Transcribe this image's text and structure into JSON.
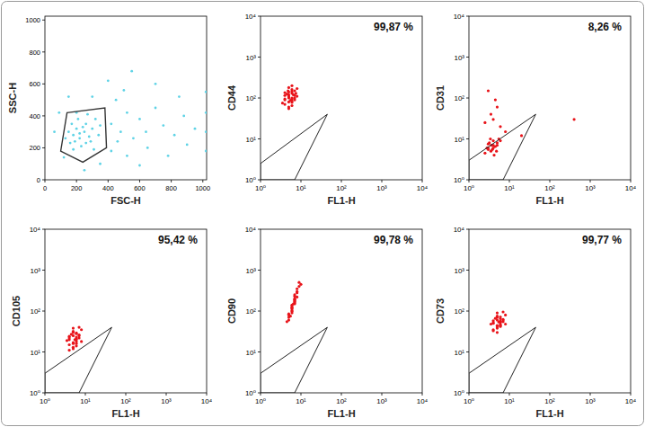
{
  "chart_data": [
    {
      "type": "scatter",
      "x_label": "FSC-H",
      "y_label": "SSC-H",
      "color": "#5fd3e6",
      "xlim": [
        0,
        1024
      ],
      "ylim": [
        0,
        1024
      ],
      "xticks": [
        0,
        200,
        400,
        600,
        800,
        1000
      ],
      "yticks": [
        0,
        200,
        400,
        600,
        800,
        1000
      ],
      "x": [
        150,
        180,
        200,
        220,
        250,
        170,
        210,
        260,
        300,
        280,
        190,
        230,
        160,
        320,
        340,
        270,
        200,
        130,
        240,
        290,
        310,
        350,
        180,
        220,
        260,
        420,
        480,
        520,
        560,
        600,
        450,
        500,
        640,
        700,
        750,
        820,
        880,
        950,
        400,
        550,
        700,
        300,
        150,
        90,
        60,
        420,
        520,
        650,
        780,
        900,
        1020,
        1020,
        1020,
        1020,
        350,
        250,
        600,
        850,
        120,
        460
      ],
      "y": [
        300,
        280,
        320,
        260,
        300,
        350,
        380,
        350,
        320,
        270,
        240,
        210,
        230,
        380,
        280,
        410,
        420,
        260,
        330,
        240,
        190,
        340,
        190,
        290,
        230,
        350,
        300,
        420,
        260,
        380,
        500,
        560,
        300,
        450,
        340,
        280,
        400,
        320,
        620,
        680,
        600,
        520,
        520,
        420,
        300,
        180,
        150,
        200,
        150,
        220,
        300,
        180,
        420,
        550,
        100,
        60,
        90,
        520,
        140,
        240
      ],
      "gate": {
        "x": [
          140,
          380,
          390,
          240,
          100
        ],
        "y": [
          420,
          450,
          200,
          110,
          180
        ]
      }
    },
    {
      "type": "scatter",
      "x_label": "FL1-H",
      "y_label": "CD44",
      "color": "#e8141a",
      "log": true,
      "annotation": "99,87 %",
      "xlim": [
        1,
        10000
      ],
      "ylim": [
        1,
        10000
      ],
      "xticks": [
        {
          "value": 1,
          "label": "10⁰"
        },
        {
          "value": 10,
          "label": "10¹"
        },
        {
          "value": 100,
          "label": "10²"
        },
        {
          "value": 1000,
          "label": "10³"
        },
        {
          "value": 10000,
          "label": "10⁴"
        }
      ],
      "yticks": [
        {
          "value": 1,
          "label": "10⁰"
        },
        {
          "value": 10,
          "label": "10¹"
        },
        {
          "value": 100,
          "label": "10²"
        },
        {
          "value": 1000,
          "label": "10³"
        },
        {
          "value": 10000,
          "label": "10⁴"
        }
      ],
      "x": [
        4,
        5,
        6,
        5,
        7,
        4,
        6,
        5,
        8,
        6,
        5,
        4,
        7,
        6,
        5,
        3.5,
        6,
        7,
        5,
        4.5,
        6,
        8,
        5,
        6,
        4,
        7,
        5,
        6,
        5.5,
        4,
        6.5,
        7.5,
        5,
        6,
        4.8
      ],
      "y": [
        90,
        110,
        130,
        80,
        150,
        70,
        100,
        120,
        170,
        200,
        60,
        95,
        115,
        85,
        140,
        75,
        160,
        90,
        105,
        125,
        65,
        110,
        180,
        95,
        135,
        100,
        55,
        145,
        88,
        115,
        120,
        130,
        100,
        78,
        150
      ],
      "gate": {
        "x": [
          1,
          1,
          45,
          7
        ],
        "y": [
          1,
          2.5,
          40,
          1
        ]
      }
    },
    {
      "type": "scatter",
      "x_label": "FL1-H",
      "y_label": "CD31",
      "color": "#e8141a",
      "log": true,
      "annotation": "8,26 %",
      "xlim": [
        1,
        10000
      ],
      "ylim": [
        1,
        10000
      ],
      "xticks": [
        {
          "value": 1,
          "label": "10⁰"
        },
        {
          "value": 10,
          "label": "10¹"
        },
        {
          "value": 100,
          "label": "10²"
        },
        {
          "value": 1000,
          "label": "10³"
        },
        {
          "value": 10000,
          "label": "10⁴"
        }
      ],
      "yticks": [
        {
          "value": 1,
          "label": "10⁰"
        },
        {
          "value": 10,
          "label": "10¹"
        },
        {
          "value": 100,
          "label": "10²"
        },
        {
          "value": 1000,
          "label": "10³"
        },
        {
          "value": 10000,
          "label": "10⁴"
        }
      ],
      "x": [
        3,
        4,
        3.5,
        5,
        2.5,
        4,
        3,
        4.5,
        3.8,
        5.5,
        3.2,
        4.2,
        2.8,
        6,
        3.6,
        4.8,
        3.4,
        4,
        5,
        3,
        4,
        5,
        3,
        6,
        8,
        3.5,
        20,
        400,
        2.5,
        4.5
      ],
      "y": [
        6,
        7,
        5,
        8,
        4.5,
        9,
        7.5,
        6.5,
        5.5,
        10,
        8,
        4,
        6,
        9,
        7,
        5,
        10,
        6,
        7,
        5.5,
        30,
        60,
        150,
        20,
        15,
        40,
        12,
        30,
        25,
        90
      ],
      "gate": {
        "x": [
          1,
          1,
          45,
          7
        ],
        "y": [
          1,
          3,
          40,
          1
        ]
      }
    },
    {
      "type": "scatter",
      "x_label": "FL1-H",
      "y_label": "CD105",
      "color": "#e8141a",
      "log": true,
      "annotation": "95,42 %",
      "xlim": [
        1,
        10000
      ],
      "ylim": [
        1,
        10000
      ],
      "xticks": [
        {
          "value": 1,
          "label": "10⁰"
        },
        {
          "value": 10,
          "label": "10¹"
        },
        {
          "value": 100,
          "label": "10²"
        },
        {
          "value": 1000,
          "label": "10³"
        },
        {
          "value": 10000,
          "label": "10⁴"
        }
      ],
      "yticks": [
        {
          "value": 1,
          "label": "10⁰"
        },
        {
          "value": 10,
          "label": "10¹"
        },
        {
          "value": 100,
          "label": "10²"
        },
        {
          "value": 1000,
          "label": "10³"
        },
        {
          "value": 10000,
          "label": "10⁴"
        }
      ],
      "x": [
        4,
        5,
        6,
        5,
        7,
        4,
        6,
        5,
        8,
        6,
        5,
        4,
        7,
        6,
        5,
        3.5,
        6,
        7,
        5,
        4.5,
        6,
        8,
        5,
        6,
        4,
        7,
        5,
        6,
        5.5,
        4
      ],
      "y": [
        20,
        25,
        18,
        30,
        22,
        15,
        28,
        12,
        35,
        20,
        17,
        24,
        26,
        14,
        32,
        19,
        21,
        40,
        16,
        27,
        23,
        18,
        13,
        29,
        22,
        25,
        38,
        16,
        20,
        11
      ],
      "gate": {
        "x": [
          1,
          1,
          45,
          7
        ],
        "y": [
          1,
          3,
          40,
          1
        ]
      }
    },
    {
      "type": "scatter",
      "x_label": "FL1-H",
      "y_label": "CD90",
      "color": "#e8141a",
      "log": true,
      "annotation": "99,78 %",
      "xlim": [
        1,
        10000
      ],
      "ylim": [
        1,
        10000
      ],
      "xticks": [
        {
          "value": 1,
          "label": "10⁰"
        },
        {
          "value": 10,
          "label": "10¹"
        },
        {
          "value": 100,
          "label": "10²"
        },
        {
          "value": 1000,
          "label": "10³"
        },
        {
          "value": 10000,
          "label": "10⁴"
        }
      ],
      "yticks": [
        {
          "value": 1,
          "label": "10⁰"
        },
        {
          "value": 10,
          "label": "10¹"
        },
        {
          "value": 100,
          "label": "10²"
        },
        {
          "value": 1000,
          "label": "10³"
        },
        {
          "value": 10000,
          "label": "10⁴"
        }
      ],
      "x": [
        5,
        6,
        7,
        6,
        8,
        5,
        7,
        6,
        9,
        7,
        6,
        5,
        8,
        7,
        6,
        4.5,
        7,
        8,
        6,
        5.5,
        7,
        9,
        6,
        7,
        5,
        8,
        6,
        7,
        6.5,
        10
      ],
      "y": [
        80,
        120,
        200,
        100,
        300,
        60,
        150,
        130,
        400,
        250,
        90,
        70,
        220,
        180,
        110,
        55,
        160,
        350,
        140,
        75,
        190,
        500,
        100,
        230,
        85,
        280,
        120,
        170,
        150,
        450
      ],
      "gate": {
        "x": [
          1,
          1,
          45,
          7
        ],
        "y": [
          1,
          3,
          40,
          1
        ]
      }
    },
    {
      "type": "scatter",
      "x_label": "FL1-H",
      "y_label": "CD73",
      "color": "#e8141a",
      "log": true,
      "annotation": "99,77 %",
      "xlim": [
        1,
        10000
      ],
      "ylim": [
        1,
        10000
      ],
      "xticks": [
        {
          "value": 1,
          "label": "10⁰"
        },
        {
          "value": 10,
          "label": "10¹"
        },
        {
          "value": 100,
          "label": "10²"
        },
        {
          "value": 1000,
          "label": "10³"
        },
        {
          "value": 10000,
          "label": "10⁴"
        }
      ],
      "yticks": [
        {
          "value": 1,
          "label": "10⁰"
        },
        {
          "value": 10,
          "label": "10¹"
        },
        {
          "value": 100,
          "label": "10²"
        },
        {
          "value": 1000,
          "label": "10³"
        },
        {
          "value": 10000,
          "label": "10⁴"
        }
      ],
      "x": [
        4,
        5,
        6,
        5,
        7,
        4,
        6,
        5,
        8,
        6,
        5,
        4,
        7,
        6,
        5,
        3.5,
        6,
        7,
        5,
        4.5,
        6,
        8,
        5,
        6,
        4,
        7,
        5,
        6,
        5.5,
        4
      ],
      "y": [
        50,
        60,
        45,
        70,
        55,
        35,
        65,
        40,
        80,
        55,
        38,
        58,
        62,
        42,
        75,
        48,
        52,
        95,
        44,
        66,
        56,
        48,
        30,
        72,
        52,
        60,
        90,
        46,
        54,
        33
      ],
      "gate": {
        "x": [
          1,
          1,
          45,
          7
        ],
        "y": [
          1,
          3,
          40,
          1
        ]
      }
    }
  ]
}
